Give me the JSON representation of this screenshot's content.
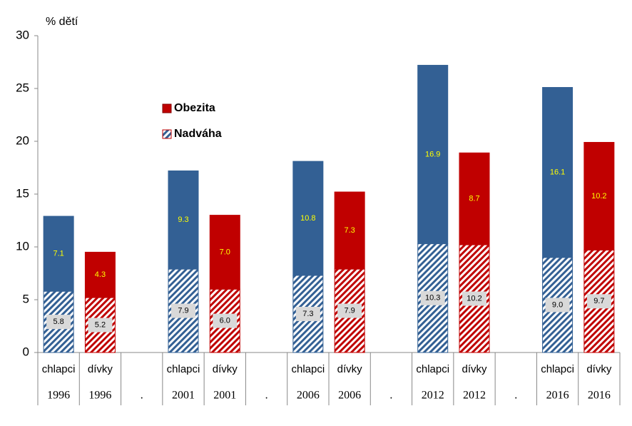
{
  "chart_data": {
    "type": "stacked-bar",
    "y_axis_label": "% dětí",
    "categories": [
      "chlapci",
      "dívky",
      null,
      "chlapci",
      "dívky",
      null,
      "chlapci",
      "dívky",
      null,
      "chlapci",
      "dívky",
      null,
      "chlapci",
      "dívky"
    ],
    "category_groups": [
      "1996",
      "1996",
      ".",
      "2001",
      "2001",
      ".",
      "2006",
      "2006",
      ".",
      "2012",
      "2012",
      ".",
      "2016",
      "2016"
    ],
    "category_colors": [
      "#336094",
      "#c00000",
      null,
      "#336094",
      "#c00000",
      null,
      "#336094",
      "#c00000",
      null,
      "#336094",
      "#c00000",
      null,
      "#336094",
      "#c00000"
    ],
    "series": [
      {
        "name": "Nadváha",
        "color": "#336094",
        "hatched": true,
        "values": [
          5.8,
          5.2,
          null,
          7.9,
          6.0,
          null,
          7.3,
          7.9,
          null,
          10.3,
          10.2,
          null,
          9.0,
          9.7
        ],
        "value_labels": [
          "5.8",
          "5.2",
          null,
          "7.9",
          "6.0",
          null,
          "7.3",
          "7.9",
          null,
          "10.3",
          "10.2",
          null,
          "9.0",
          "9.7"
        ]
      },
      {
        "name": "Obezita",
        "color": "#c00000",
        "hatched": false,
        "values": [
          7.1,
          4.3,
          null,
          9.3,
          7.0,
          null,
          10.8,
          7.3,
          null,
          16.9,
          8.7,
          null,
          16.1,
          10.2
        ],
        "value_labels": [
          "7.1",
          "4.3",
          null,
          "9.3",
          "7.0",
          null,
          "10.8",
          "7.3",
          null,
          "16.9",
          "8.7",
          null,
          "16.1",
          "10.2"
        ]
      }
    ],
    "ylim": [
      0,
      30
    ],
    "yticks": [
      0,
      5,
      10,
      15,
      20,
      25,
      30
    ],
    "grid": false
  }
}
